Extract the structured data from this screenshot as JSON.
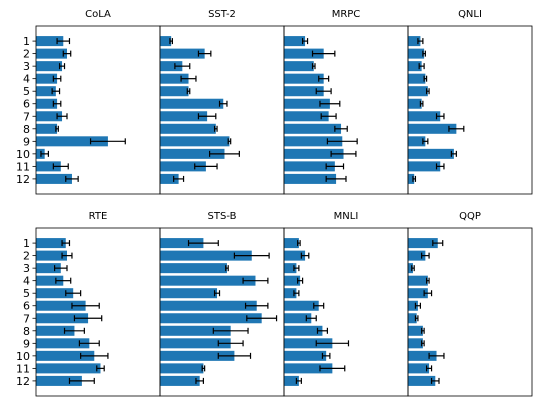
{
  "chart_data": {
    "type": "bar",
    "orientation": "horizontal",
    "layout": "2x4 grid of panels",
    "shared_y_axis_per_row": true,
    "categories": [
      "1",
      "2",
      "3",
      "4",
      "5",
      "6",
      "7",
      "8",
      "9",
      "10",
      "11",
      "12"
    ],
    "xlim": [
      0,
      1
    ],
    "bar_color": "#1f77b4",
    "error_bar_color": "#000000",
    "panels": [
      {
        "title": "CoLA",
        "values": [
          0.22,
          0.25,
          0.21,
          0.17,
          0.16,
          0.17,
          0.21,
          0.17,
          0.58,
          0.07,
          0.2,
          0.29
        ],
        "errors": [
          0.05,
          0.03,
          0.02,
          0.03,
          0.03,
          0.03,
          0.04,
          0.01,
          0.14,
          0.03,
          0.06,
          0.05
        ]
      },
      {
        "title": "SST-2",
        "values": [
          0.09,
          0.36,
          0.18,
          0.23,
          0.23,
          0.51,
          0.38,
          0.45,
          0.56,
          0.52,
          0.37,
          0.15
        ],
        "errors": [
          0.01,
          0.05,
          0.06,
          0.06,
          0.01,
          0.03,
          0.07,
          0.01,
          0.01,
          0.12,
          0.09,
          0.04
        ]
      },
      {
        "title": "MRPC",
        "values": [
          0.17,
          0.32,
          0.24,
          0.32,
          0.32,
          0.37,
          0.36,
          0.46,
          0.47,
          0.48,
          0.41,
          0.42
        ],
        "errors": [
          0.02,
          0.09,
          0.01,
          0.04,
          0.06,
          0.08,
          0.06,
          0.05,
          0.12,
          0.1,
          0.07,
          0.08
        ]
      },
      {
        "title": "QNLI",
        "values": [
          0.1,
          0.13,
          0.11,
          0.14,
          0.16,
          0.11,
          0.26,
          0.39,
          0.14,
          0.37,
          0.26,
          0.05
        ],
        "errors": [
          0.02,
          0.01,
          0.02,
          0.01,
          0.01,
          0.01,
          0.03,
          0.06,
          0.02,
          0.02,
          0.03,
          0.01
        ]
      },
      {
        "title": "RTE",
        "values": [
          0.24,
          0.25,
          0.2,
          0.22,
          0.3,
          0.4,
          0.42,
          0.31,
          0.43,
          0.47,
          0.52,
          0.37
        ],
        "errors": [
          0.03,
          0.04,
          0.05,
          0.06,
          0.06,
          0.11,
          0.11,
          0.08,
          0.08,
          0.11,
          0.03,
          0.1
        ]
      },
      {
        "title": "STS-B",
        "values": [
          0.35,
          0.74,
          0.54,
          0.77,
          0.46,
          0.78,
          0.82,
          0.57,
          0.57,
          0.6,
          0.35,
          0.32
        ],
        "errors": [
          0.12,
          0.14,
          0.01,
          0.1,
          0.02,
          0.09,
          0.12,
          0.14,
          0.1,
          0.13,
          0.01,
          0.03
        ]
      },
      {
        "title": "MNLI",
        "values": [
          0.12,
          0.17,
          0.1,
          0.13,
          0.1,
          0.28,
          0.22,
          0.31,
          0.39,
          0.34,
          0.39,
          0.12
        ],
        "errors": [
          0.01,
          0.03,
          0.02,
          0.02,
          0.02,
          0.04,
          0.04,
          0.04,
          0.13,
          0.03,
          0.1,
          0.02
        ]
      },
      {
        "title": "QQP",
        "values": [
          0.24,
          0.14,
          0.04,
          0.16,
          0.16,
          0.08,
          0.07,
          0.12,
          0.12,
          0.23,
          0.17,
          0.22
        ],
        "errors": [
          0.04,
          0.03,
          0.01,
          0.01,
          0.03,
          0.02,
          0.01,
          0.01,
          0.01,
          0.06,
          0.02,
          0.03
        ]
      }
    ]
  }
}
